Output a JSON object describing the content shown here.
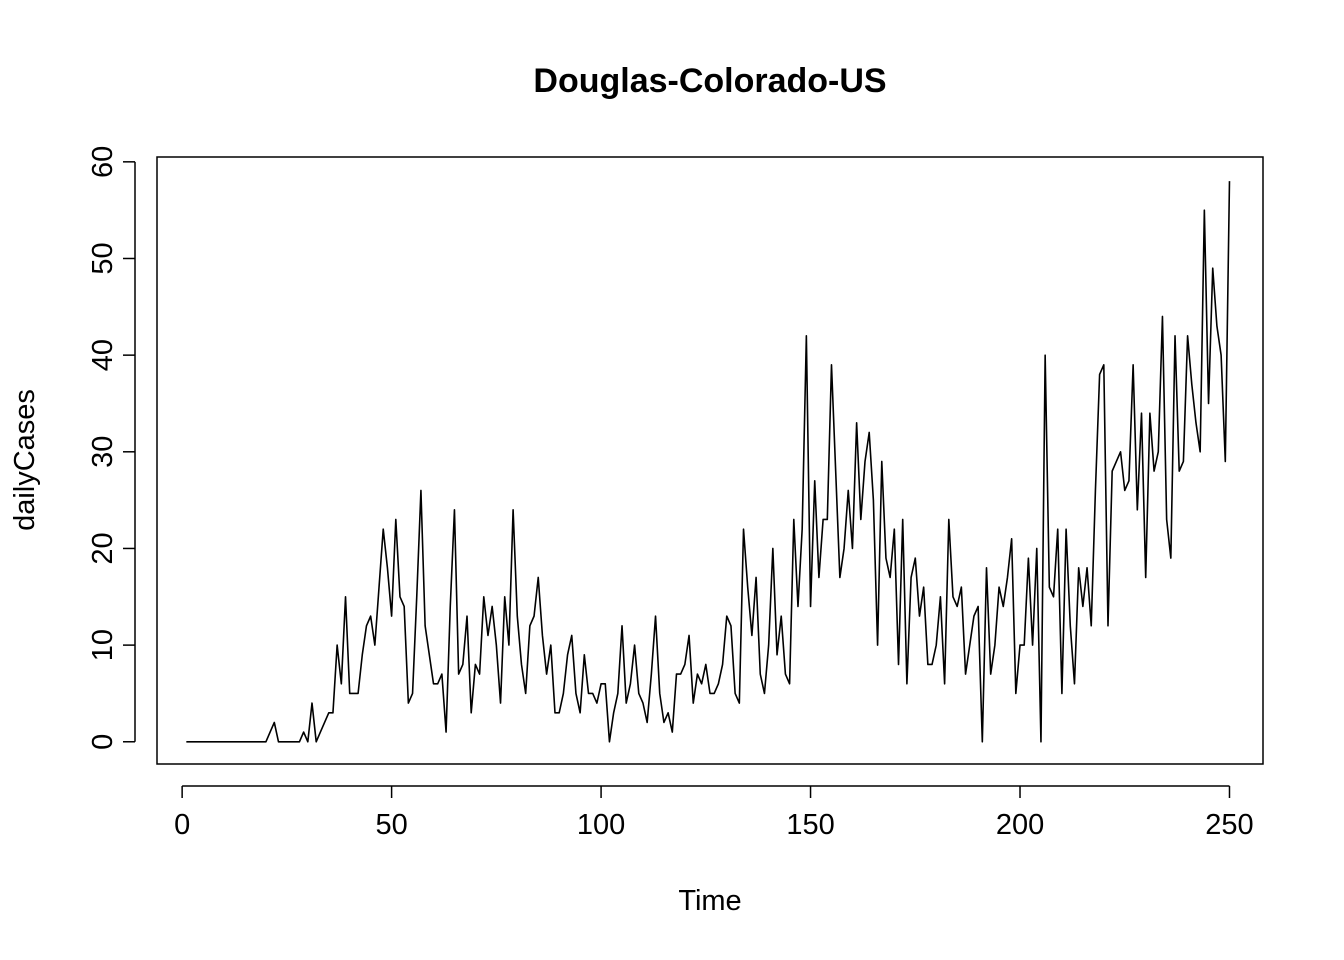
{
  "chart_data": {
    "type": "line",
    "title": "Douglas-Colorado-US",
    "xlabel": "Time",
    "ylabel": "dailyCases",
    "xlim": [
      -6,
      258
    ],
    "ylim": [
      -2.3,
      60.5
    ],
    "x_ticks": [
      0,
      50,
      100,
      150,
      200,
      250
    ],
    "y_ticks": [
      0,
      10,
      20,
      30,
      40,
      50,
      60
    ],
    "grid": false,
    "legend": "none",
    "line_color": "#000000",
    "x_start": 1,
    "series": [
      {
        "values": [
          0,
          0,
          0,
          0,
          0,
          0,
          0,
          0,
          0,
          0,
          0,
          0,
          0,
          0,
          0,
          0,
          0,
          0,
          0,
          0,
          1,
          2,
          0,
          0,
          0,
          0,
          0,
          0,
          1,
          0,
          4,
          0,
          1,
          2,
          3,
          3,
          10,
          6,
          15,
          5,
          5,
          5,
          9,
          12,
          13,
          10,
          16,
          22,
          18,
          13,
          23,
          15,
          14,
          4,
          5,
          15,
          26,
          12,
          9,
          6,
          6,
          7,
          1,
          14,
          24,
          7,
          8,
          13,
          3,
          8,
          7,
          15,
          11,
          14,
          10,
          4,
          15,
          10,
          24,
          13,
          8,
          5,
          12,
          13,
          17,
          11,
          7,
          10,
          3,
          3,
          5,
          9,
          11,
          5,
          3,
          9,
          5,
          5,
          4,
          6,
          6,
          0,
          3,
          5,
          12,
          4,
          6,
          10,
          5,
          4,
          2,
          7,
          13,
          5,
          2,
          3,
          1,
          7,
          7,
          8,
          11,
          4,
          7,
          6,
          8,
          5,
          5,
          6,
          8,
          13,
          12,
          5,
          4,
          22,
          16,
          11,
          17,
          7,
          5,
          10,
          20,
          9,
          13,
          7,
          6,
          23,
          14,
          22,
          42,
          14,
          27,
          17,
          23,
          23,
          39,
          28,
          17,
          20,
          26,
          20,
          33,
          23,
          29,
          32,
          25,
          10,
          29,
          19,
          17,
          22,
          8,
          23,
          6,
          17,
          19,
          13,
          16,
          8,
          8,
          10,
          15,
          6,
          23,
          15,
          14,
          16,
          7,
          10,
          13,
          14,
          0,
          18,
          7,
          10,
          16,
          14,
          17,
          21,
          5,
          10,
          10,
          19,
          10,
          20,
          0,
          40,
          16,
          15,
          22,
          5,
          22,
          12,
          6,
          18,
          14,
          18,
          12,
          26,
          38,
          39,
          12,
          28,
          29,
          30,
          26,
          27,
          39,
          24,
          34,
          17,
          34,
          28,
          30,
          44,
          23,
          19,
          42,
          28,
          29,
          42,
          37,
          33,
          30,
          55,
          35,
          49,
          43,
          40,
          29,
          58
        ]
      }
    ]
  }
}
